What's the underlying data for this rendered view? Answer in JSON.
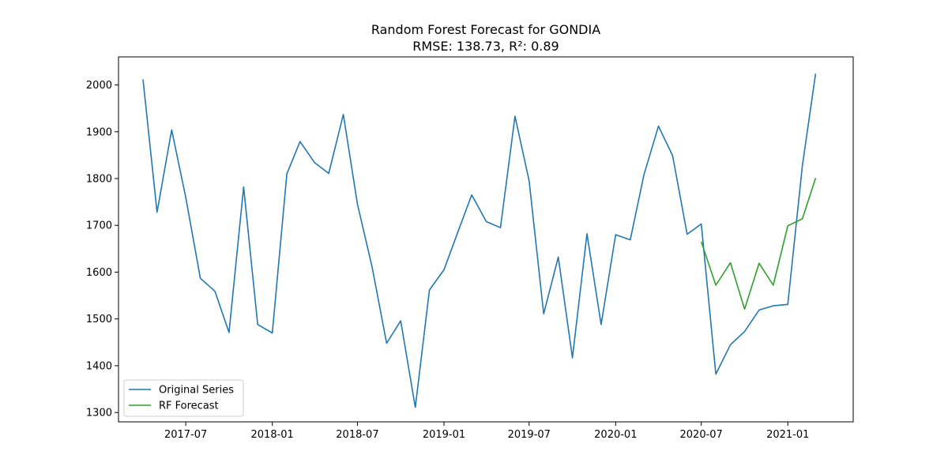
{
  "chart_data": {
    "type": "line",
    "title": "Random Forest Forecast for GONDIA",
    "subtitle": "RMSE: 138.73, R²: 0.89",
    "xlabel": "",
    "ylabel": "",
    "xlim": [
      "2017-02-08",
      "2021-05-20"
    ],
    "ylim": [
      1280,
      2060
    ],
    "x_ticks": [
      "2017-07",
      "2018-01",
      "2018-07",
      "2019-01",
      "2019-07",
      "2020-01",
      "2020-07",
      "2021-01"
    ],
    "y_ticks": [
      1300,
      1400,
      1500,
      1600,
      1700,
      1800,
      1900,
      2000
    ],
    "grid": false,
    "legend_position": "lower-left",
    "series": [
      {
        "name": "Original Series",
        "color": "#1f77b4",
        "x": [
          "2017-04",
          "2017-05",
          "2017-06",
          "2017-07",
          "2017-08",
          "2017-09",
          "2017-10",
          "2017-11",
          "2017-12",
          "2018-01",
          "2018-02",
          "2018-03",
          "2018-04",
          "2018-05",
          "2018-06",
          "2018-07",
          "2018-08",
          "2018-09",
          "2018-10",
          "2018-11",
          "2018-12",
          "2019-01",
          "2019-02",
          "2019-03",
          "2019-04",
          "2019-05",
          "2019-06",
          "2019-07",
          "2019-08",
          "2019-09",
          "2019-10",
          "2019-11",
          "2019-12",
          "2020-01",
          "2020-02",
          "2020-03",
          "2020-04",
          "2020-05",
          "2020-06",
          "2020-07",
          "2020-08",
          "2020-09",
          "2020-10",
          "2020-11",
          "2020-12",
          "2021-01",
          "2021-02",
          "2021-03"
        ],
        "values": [
          2012,
          1728,
          1904,
          1760,
          1587,
          1559,
          1471,
          1782,
          1488,
          1470,
          1810,
          1879,
          1834,
          1811,
          1937,
          1745,
          1612,
          1448,
          1496,
          1311,
          1562,
          1605,
          1690,
          1765,
          1708,
          1695,
          1933,
          1795,
          1511,
          1632,
          1417,
          1682,
          1488,
          1680,
          1669,
          1808,
          1912,
          1849,
          1681,
          1703,
          1382,
          1445,
          1473,
          1519,
          1528,
          1531,
          1828,
          2024
        ]
      },
      {
        "name": "RF Forecast",
        "color": "#2ca02c",
        "x": [
          "2020-07",
          "2020-08",
          "2020-09",
          "2020-10",
          "2020-11",
          "2020-12",
          "2021-01",
          "2021-02",
          "2021-03"
        ],
        "values": [
          1665,
          1572,
          1620,
          1521,
          1619,
          1572,
          1699,
          1714,
          1801
        ]
      }
    ]
  }
}
